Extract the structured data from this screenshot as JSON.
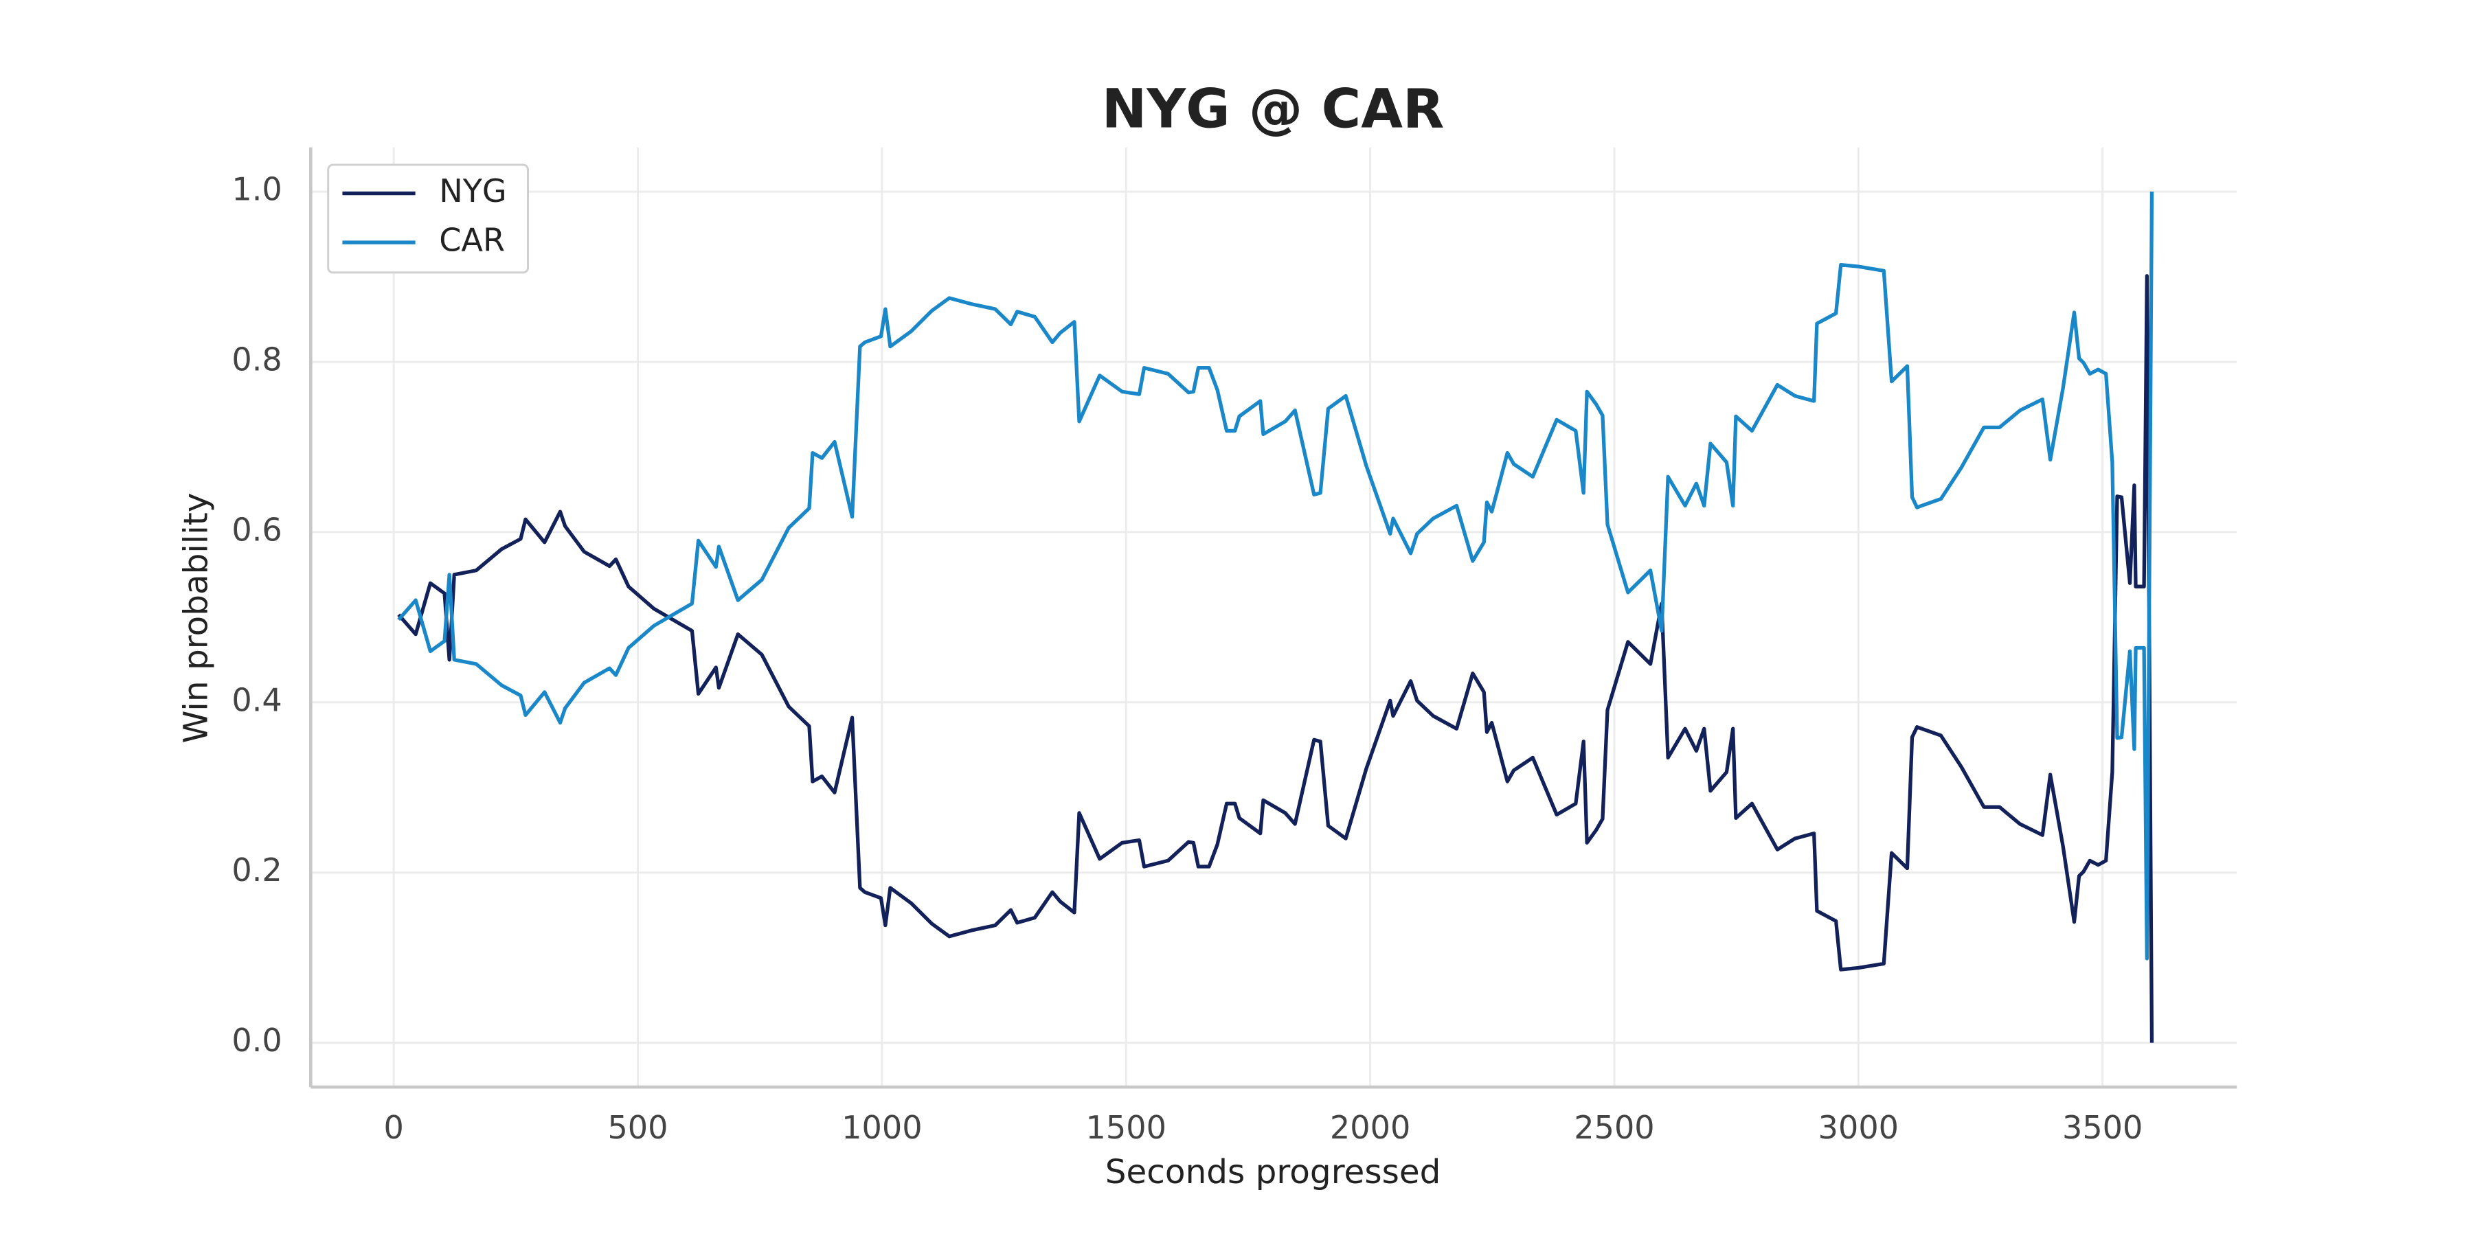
{
  "chart_data": {
    "type": "line",
    "title": "NYG @ CAR",
    "xlabel": "Seconds progressed",
    "ylabel": "Win probability",
    "x": [
      10,
      45,
      75,
      104,
      114,
      124,
      169,
      221,
      260,
      270,
      309,
      341,
      351,
      390,
      442,
      455,
      481,
      533,
      611,
      624,
      660,
      666,
      705,
      754,
      809,
      851,
      858,
      877,
      903,
      939,
      955,
      965,
      998,
      1007,
      1017,
      1060,
      1102,
      1138,
      1183,
      1232,
      1264,
      1277,
      1313,
      1349,
      1365,
      1394,
      1404,
      1446,
      1492,
      1527,
      1537,
      1586,
      1628,
      1638,
      1648,
      1670,
      1687,
      1706,
      1723,
      1732,
      1775,
      1781,
      1826,
      1846,
      1885,
      1898,
      1914,
      1950,
      1992,
      2041,
      2047,
      2083,
      2096,
      2129,
      2177,
      2210,
      2233,
      2239,
      2249,
      2281,
      2294,
      2333,
      2382,
      2421,
      2437,
      2444,
      2463,
      2476,
      2486,
      2528,
      2574,
      2597,
      2610,
      2645,
      2668,
      2684,
      2697,
      2730,
      2743,
      2749,
      2782,
      2834,
      2870,
      2909,
      2915,
      2954,
      2964,
      3000,
      3052,
      3068,
      3100,
      3110,
      3120,
      3169,
      3211,
      3257,
      3289,
      3331,
      3377,
      3393,
      3419,
      3442,
      3452,
      3461,
      3474,
      3491,
      3507,
      3520,
      3530,
      3539,
      3556,
      3565,
      3568,
      3585,
      3591,
      3601
    ],
    "series": [
      {
        "name": "NYG",
        "color": "#13215a",
        "values": [
          0.503,
          0.48,
          0.54,
          0.528,
          0.45,
          0.55,
          0.555,
          0.58,
          0.592,
          0.615,
          0.588,
          0.624,
          0.607,
          0.577,
          0.56,
          0.568,
          0.536,
          0.51,
          0.484,
          0.41,
          0.441,
          0.417,
          0.48,
          0.456,
          0.395,
          0.372,
          0.307,
          0.313,
          0.294,
          0.382,
          0.182,
          0.177,
          0.17,
          0.138,
          0.182,
          0.164,
          0.14,
          0.125,
          0.132,
          0.138,
          0.156,
          0.141,
          0.147,
          0.177,
          0.166,
          0.153,
          0.27,
          0.216,
          0.235,
          0.238,
          0.207,
          0.214,
          0.236,
          0.235,
          0.207,
          0.207,
          0.233,
          0.281,
          0.281,
          0.264,
          0.246,
          0.285,
          0.27,
          0.257,
          0.356,
          0.354,
          0.255,
          0.24,
          0.322,
          0.402,
          0.384,
          0.425,
          0.402,
          0.384,
          0.369,
          0.434,
          0.412,
          0.365,
          0.376,
          0.307,
          0.32,
          0.335,
          0.268,
          0.281,
          0.354,
          0.235,
          0.25,
          0.263,
          0.391,
          0.471,
          0.445,
          0.516,
          0.335,
          0.369,
          0.343,
          0.369,
          0.296,
          0.318,
          0.369,
          0.264,
          0.281,
          0.227,
          0.24,
          0.246,
          0.155,
          0.143,
          0.086,
          0.088,
          0.093,
          0.223,
          0.205,
          0.359,
          0.371,
          0.361,
          0.324,
          0.277,
          0.277,
          0.257,
          0.244,
          0.315,
          0.231,
          0.142,
          0.196,
          0.201,
          0.214,
          0.209,
          0.214,
          0.318,
          0.642,
          0.641,
          0.54,
          0.655,
          0.536,
          0.536,
          0.901,
          0.0
        ]
      },
      {
        "name": "CAR",
        "color": "#1a87c8",
        "values": [
          0.497,
          0.52,
          0.46,
          0.472,
          0.55,
          0.45,
          0.445,
          0.42,
          0.408,
          0.385,
          0.412,
          0.376,
          0.393,
          0.423,
          0.44,
          0.432,
          0.464,
          0.49,
          0.516,
          0.59,
          0.559,
          0.583,
          0.52,
          0.544,
          0.605,
          0.628,
          0.693,
          0.687,
          0.706,
          0.618,
          0.818,
          0.823,
          0.83,
          0.862,
          0.818,
          0.836,
          0.86,
          0.875,
          0.868,
          0.862,
          0.844,
          0.859,
          0.853,
          0.823,
          0.834,
          0.847,
          0.73,
          0.784,
          0.765,
          0.762,
          0.793,
          0.786,
          0.764,
          0.765,
          0.793,
          0.793,
          0.767,
          0.719,
          0.719,
          0.736,
          0.754,
          0.715,
          0.73,
          0.743,
          0.644,
          0.646,
          0.745,
          0.76,
          0.678,
          0.598,
          0.616,
          0.575,
          0.598,
          0.616,
          0.631,
          0.566,
          0.588,
          0.635,
          0.624,
          0.693,
          0.68,
          0.665,
          0.732,
          0.719,
          0.646,
          0.765,
          0.75,
          0.737,
          0.609,
          0.529,
          0.555,
          0.484,
          0.665,
          0.631,
          0.657,
          0.631,
          0.704,
          0.682,
          0.631,
          0.736,
          0.719,
          0.773,
          0.76,
          0.754,
          0.845,
          0.857,
          0.914,
          0.912,
          0.907,
          0.777,
          0.795,
          0.641,
          0.629,
          0.639,
          0.676,
          0.723,
          0.723,
          0.743,
          0.756,
          0.685,
          0.769,
          0.858,
          0.804,
          0.799,
          0.786,
          0.791,
          0.786,
          0.682,
          0.358,
          0.359,
          0.46,
          0.345,
          0.464,
          0.464,
          0.099,
          1.0
        ]
      }
    ],
    "xlim": [
      -170,
      3775
    ],
    "xticks": [
      0,
      500,
      1000,
      1500,
      2000,
      2500,
      3000,
      3500
    ],
    "ylim": [
      -0.052,
      1.052
    ],
    "yticks": [
      {
        "value": 0,
        "label": "0.0"
      },
      0.2,
      0.4,
      0.6,
      0.8,
      {
        "value": 1,
        "label": "1.0"
      }
    ],
    "grid": true,
    "legend": "upper left"
  }
}
